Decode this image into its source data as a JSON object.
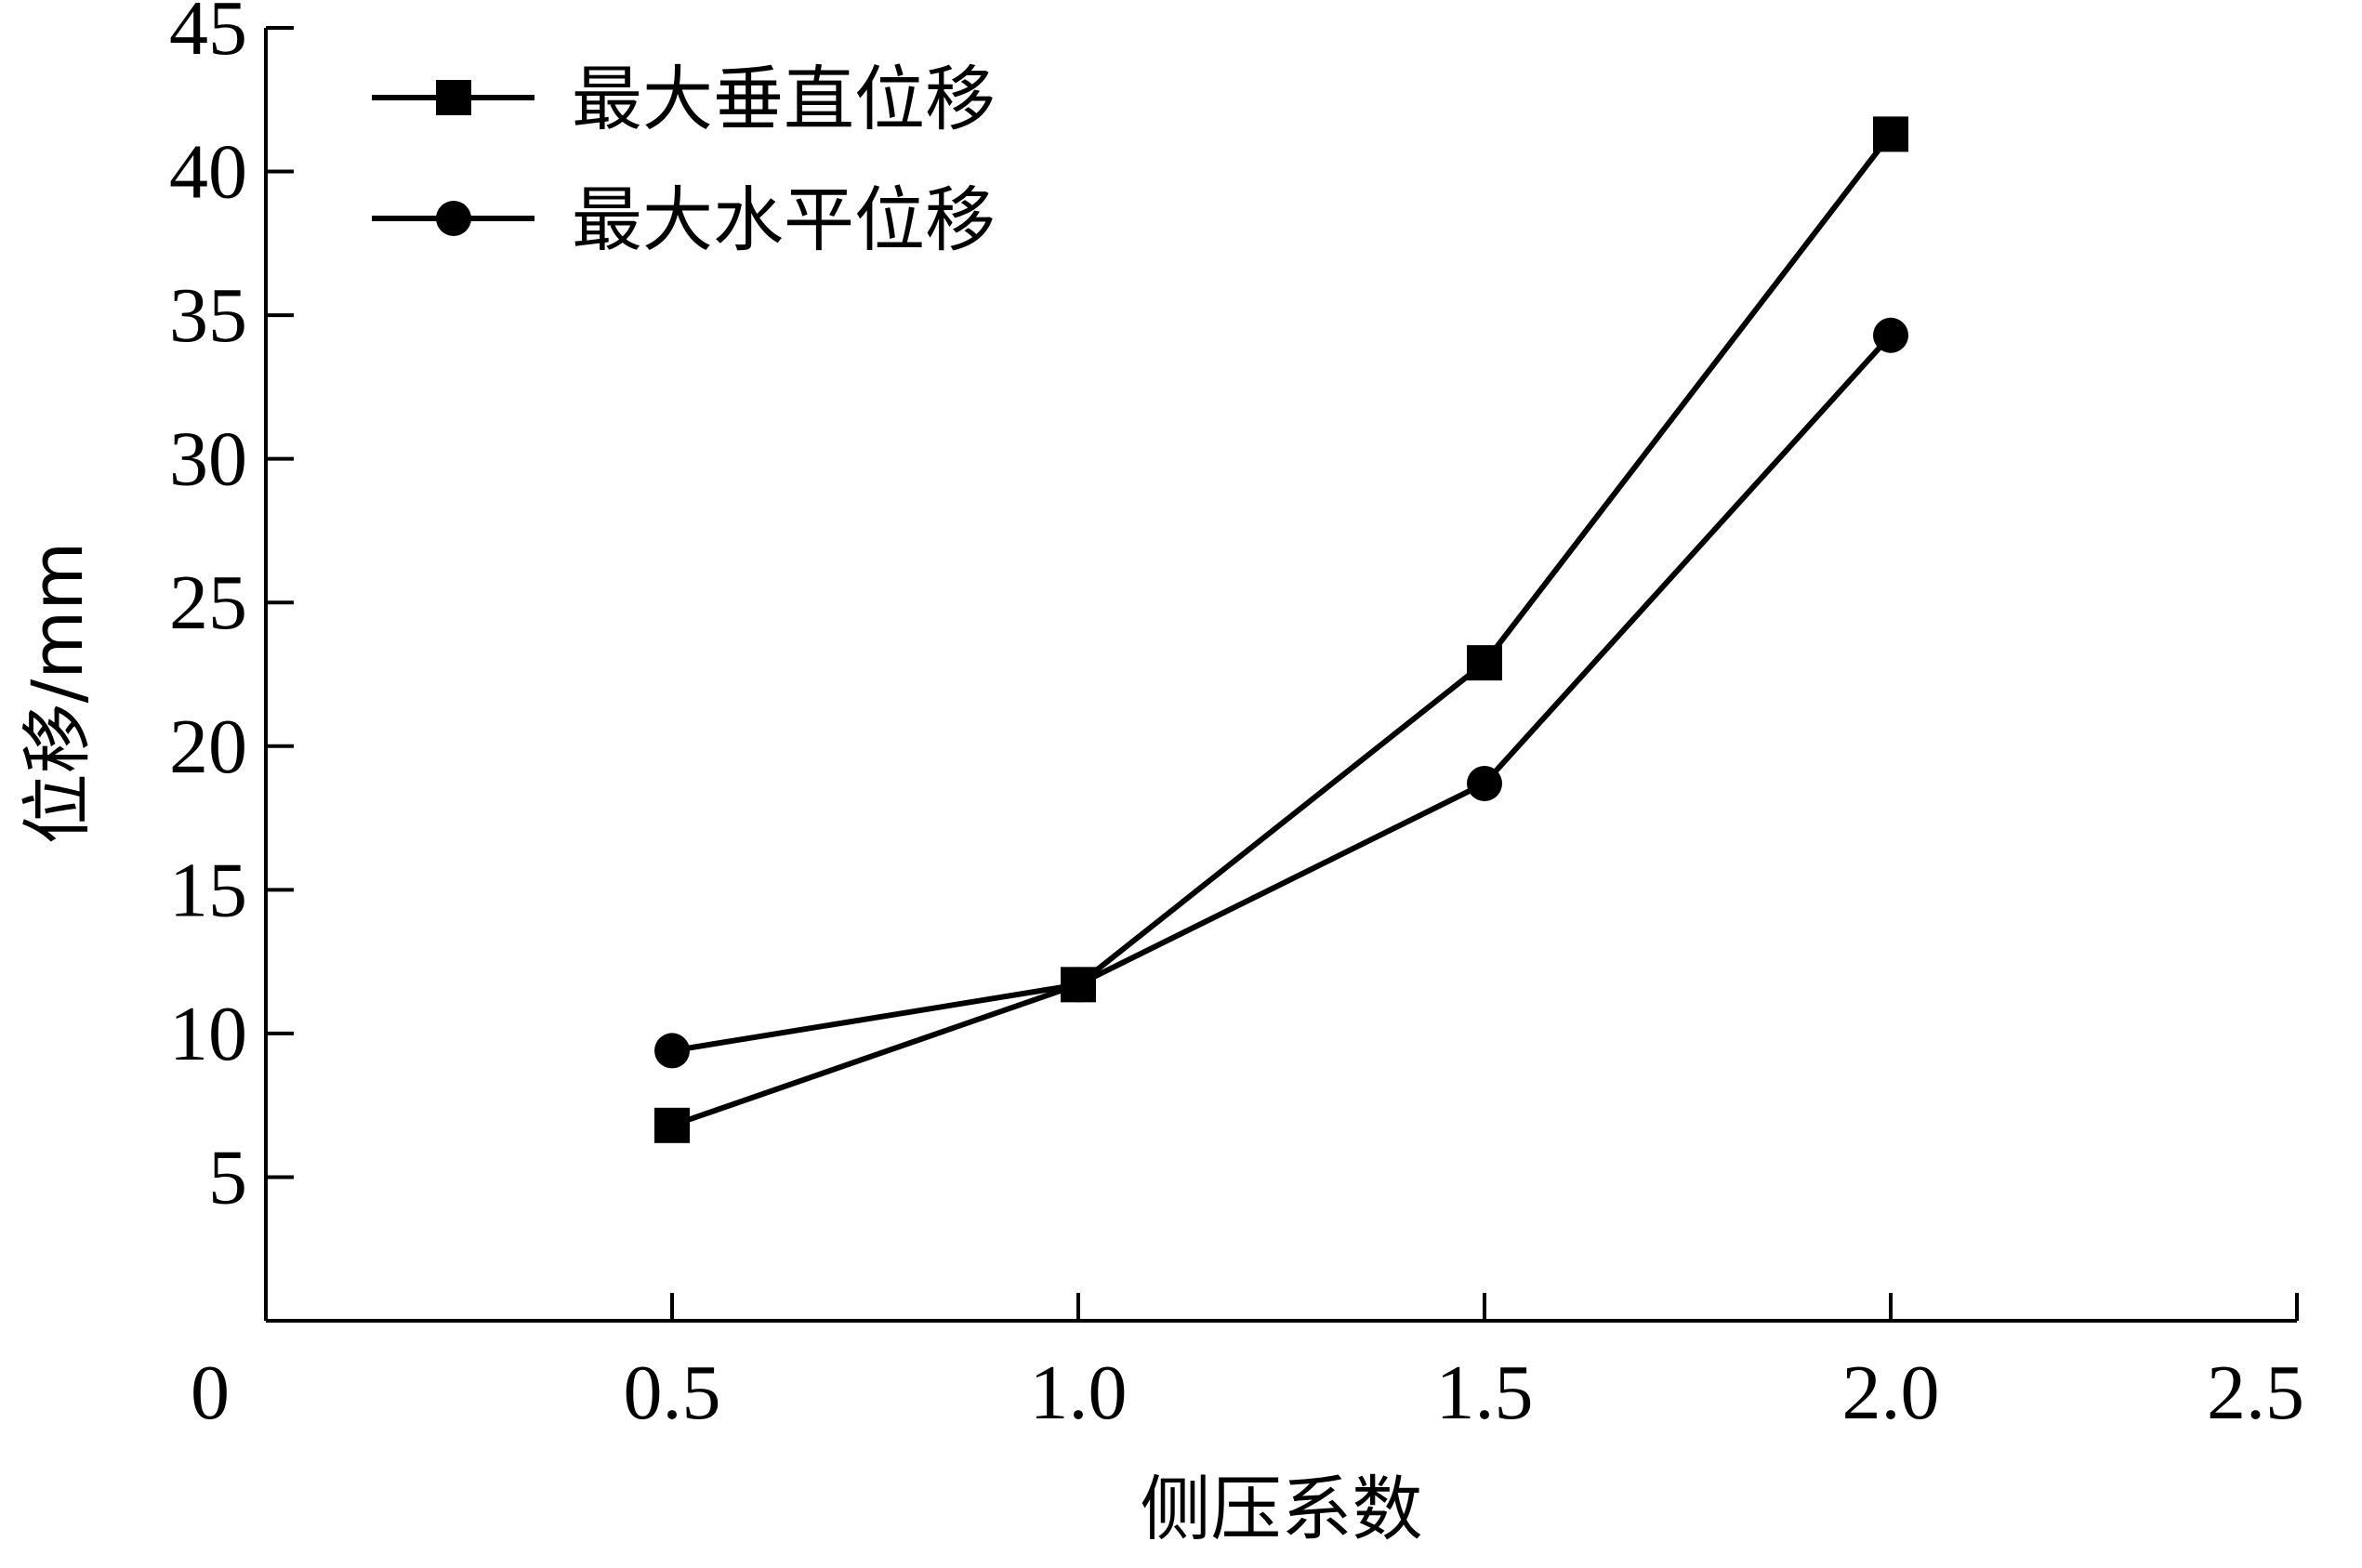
{
  "chart_data": {
    "type": "line",
    "xlabel": "侧压系数",
    "ylabel": "位移/mm",
    "xlim": [
      0,
      2.5
    ],
    "ylim": [
      0,
      45
    ],
    "x_ticks": [
      "0",
      "0.5",
      "1.0",
      "1.5",
      "2.0",
      "2.5"
    ],
    "x_tick_values": [
      0,
      0.5,
      1.0,
      1.5,
      2.0,
      2.5
    ],
    "y_ticks": [
      "5",
      "10",
      "15",
      "20",
      "25",
      "30",
      "35",
      "40",
      "45"
    ],
    "y_tick_values": [
      5,
      10,
      15,
      20,
      25,
      30,
      35,
      40,
      45
    ],
    "x": [
      0.5,
      1.0,
      1.5,
      2.0
    ],
    "series": [
      {
        "name": "最大垂直位移",
        "marker": "square",
        "values": [
          6.8,
          11.7,
          22.9,
          41.3
        ]
      },
      {
        "name": "最大水平位移",
        "marker": "circle",
        "values": [
          9.4,
          11.7,
          18.7,
          34.3
        ]
      }
    ],
    "legend_position": "top-left",
    "grid": false,
    "colors": {
      "line": "#000000",
      "background": "#ffffff"
    }
  }
}
